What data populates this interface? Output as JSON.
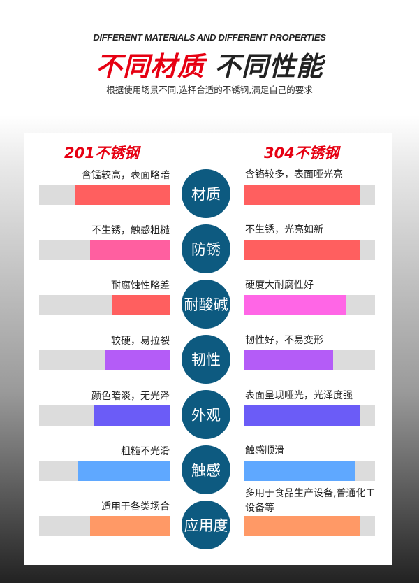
{
  "header": {
    "subtitle_en": "DIFFERENT MATERIALS AND DIFFERENT PROPERTIES",
    "title_red": "不同材质",
    "title_black": "不同性能",
    "description": "根据使用场景不同,选择合适的不锈钢,满足自己的要求"
  },
  "columns": {
    "left": "201不锈钢",
    "right": "304不锈钢"
  },
  "rows": [
    {
      "label": "材质",
      "left_text": "含锰较高，表面略暗",
      "left_level": 0.73,
      "left_color": "#ff5f5f",
      "right_text": "含铬较多，表面哑光亮",
      "right_level": 0.89,
      "right_color": "#ff5f5f"
    },
    {
      "label": "防锈",
      "left_text": "不生锈，触感粗糙",
      "left_level": 0.61,
      "left_color": "#ff5fa0",
      "right_text": "不生锈，光亮如新",
      "right_level": 0.89,
      "right_color": "#ff5f5f"
    },
    {
      "label": "耐酸碱",
      "left_text": "耐腐蚀性略差",
      "left_level": 0.44,
      "left_color": "#ff5f5f",
      "right_text": "硬度大耐腐性好",
      "right_level": 0.78,
      "right_color": "#ff66e6"
    },
    {
      "label": "韧性",
      "left_text": "较硬，易拉裂",
      "left_level": 0.5,
      "left_color": "#b45cf7",
      "right_text": "韧性好，不易变形",
      "right_level": 0.68,
      "right_color": "#b45cf7"
    },
    {
      "label": "外观",
      "left_text": "颜色暗淡，无光泽",
      "left_level": 0.58,
      "left_color": "#6b5cf7",
      "right_text": "表面呈现哑光，光泽度强",
      "right_level": 0.89,
      "right_color": "#6b5cf7"
    },
    {
      "label": "触感",
      "left_text": "粗糙不光滑",
      "left_level": 0.7,
      "left_color": "#5fa8ff",
      "right_text": "触感顺滑",
      "right_level": 0.85,
      "right_color": "#5fa8ff"
    },
    {
      "label": "应用度",
      "left_text": "适用于各类场合",
      "left_level": 0.61,
      "left_color": "#ff9966",
      "right_text": "多用于食品生产设备,普通化工设备等",
      "right_level": 0.89,
      "right_color": "#ff9966"
    }
  ]
}
